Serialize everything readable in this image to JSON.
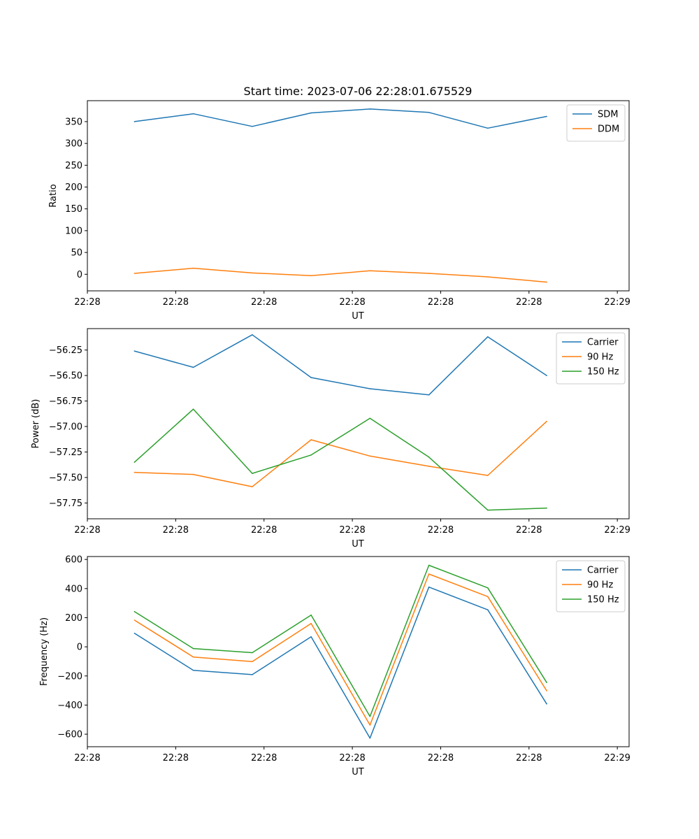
{
  "chart_data": [
    {
      "type": "line",
      "title": "Start time: 2023-07-06 22:28:01.675529",
      "xlabel": "UT",
      "ylabel": "Ratio",
      "x": [
        1,
        2,
        3,
        4,
        5,
        6,
        7,
        8
      ],
      "xlim": [
        0.2,
        9.4
      ],
      "xticks": [
        0.2,
        1.7,
        3.2,
        4.7,
        6.2,
        7.7,
        9.2
      ],
      "xticklabels": [
        "22:28",
        "22:28",
        "22:28",
        "22:28",
        "22:28",
        "22:28",
        "22:29"
      ],
      "ylim": [
        -38,
        398
      ],
      "yticks": [
        0,
        50,
        100,
        150,
        200,
        250,
        300,
        350
      ],
      "ytick_labels": [
        "0",
        "50",
        "100",
        "150",
        "200",
        "250",
        "300",
        "350"
      ],
      "legend_position": "top-right",
      "series": [
        {
          "name": "SDM",
          "color": "#1f77b4",
          "values": [
            350,
            368,
            339,
            370,
            379,
            371,
            335,
            362
          ]
        },
        {
          "name": "DDM",
          "color": "#ff7f0e",
          "values": [
            2,
            14,
            3,
            -3,
            8,
            2,
            -6,
            -18
          ]
        }
      ]
    },
    {
      "type": "line",
      "xlabel": "UT",
      "ylabel": "Power (dB)",
      "x": [
        1,
        2,
        3,
        4,
        5,
        6,
        7,
        8
      ],
      "xlim": [
        0.2,
        9.4
      ],
      "xticks": [
        0.2,
        1.7,
        3.2,
        4.7,
        6.2,
        7.7,
        9.2
      ],
      "xticklabels": [
        "22:28",
        "22:28",
        "22:28",
        "22:28",
        "22:28",
        "22:28",
        "22:29"
      ],
      "ylim": [
        -57.905,
        -56.04
      ],
      "yticks": [
        -57.75,
        -57.5,
        -57.25,
        -57.0,
        -56.75,
        -56.5,
        -56.25
      ],
      "ytick_labels": [
        "−57.75",
        "−57.50",
        "−57.25",
        "−57.00",
        "−56.75",
        "−56.50",
        "−56.25"
      ],
      "legend_position": "top-right",
      "series": [
        {
          "name": "Carrier",
          "color": "#1f77b4",
          "values": [
            -56.26,
            -56.42,
            -56.1,
            -56.52,
            -56.63,
            -56.69,
            -56.12,
            -56.5
          ]
        },
        {
          "name": "90 Hz",
          "color": "#ff7f0e",
          "values": [
            -57.45,
            -57.47,
            -57.59,
            -57.13,
            -57.29,
            -57.39,
            -57.48,
            -56.95
          ]
        },
        {
          "name": "150 Hz",
          "color": "#2ca02c",
          "values": [
            -57.35,
            -56.83,
            -57.46,
            -57.28,
            -56.92,
            -57.3,
            -57.82,
            -57.8
          ]
        }
      ]
    },
    {
      "type": "line",
      "xlabel": "UT",
      "ylabel": "Frequency (Hz)",
      "x": [
        1,
        2,
        3,
        4,
        5,
        6,
        7,
        8
      ],
      "xlim": [
        0.2,
        9.4
      ],
      "xticks": [
        0.2,
        1.7,
        3.2,
        4.7,
        6.2,
        7.7,
        9.2
      ],
      "xticklabels": [
        "22:28",
        "22:28",
        "22:28",
        "22:28",
        "22:28",
        "22:28",
        "22:29"
      ],
      "ylim": [
        -686,
        620
      ],
      "yticks": [
        -600,
        -400,
        -200,
        0,
        200,
        400,
        600
      ],
      "ytick_labels": [
        "−600",
        "−400",
        "−200",
        "0",
        "200",
        "400",
        "600"
      ],
      "legend_position": "top-right",
      "series": [
        {
          "name": "Carrier",
          "color": "#1f77b4",
          "values": [
            93,
            -161,
            -191,
            69,
            -627,
            410,
            254,
            -392
          ]
        },
        {
          "name": "90 Hz",
          "color": "#ff7f0e",
          "values": [
            183,
            -70,
            -101,
            160,
            -537,
            500,
            345,
            -302
          ]
        },
        {
          "name": "150 Hz",
          "color": "#2ca02c",
          "values": [
            242,
            -12,
            -40,
            218,
            -478,
            560,
            405,
            -245
          ]
        }
      ]
    }
  ]
}
